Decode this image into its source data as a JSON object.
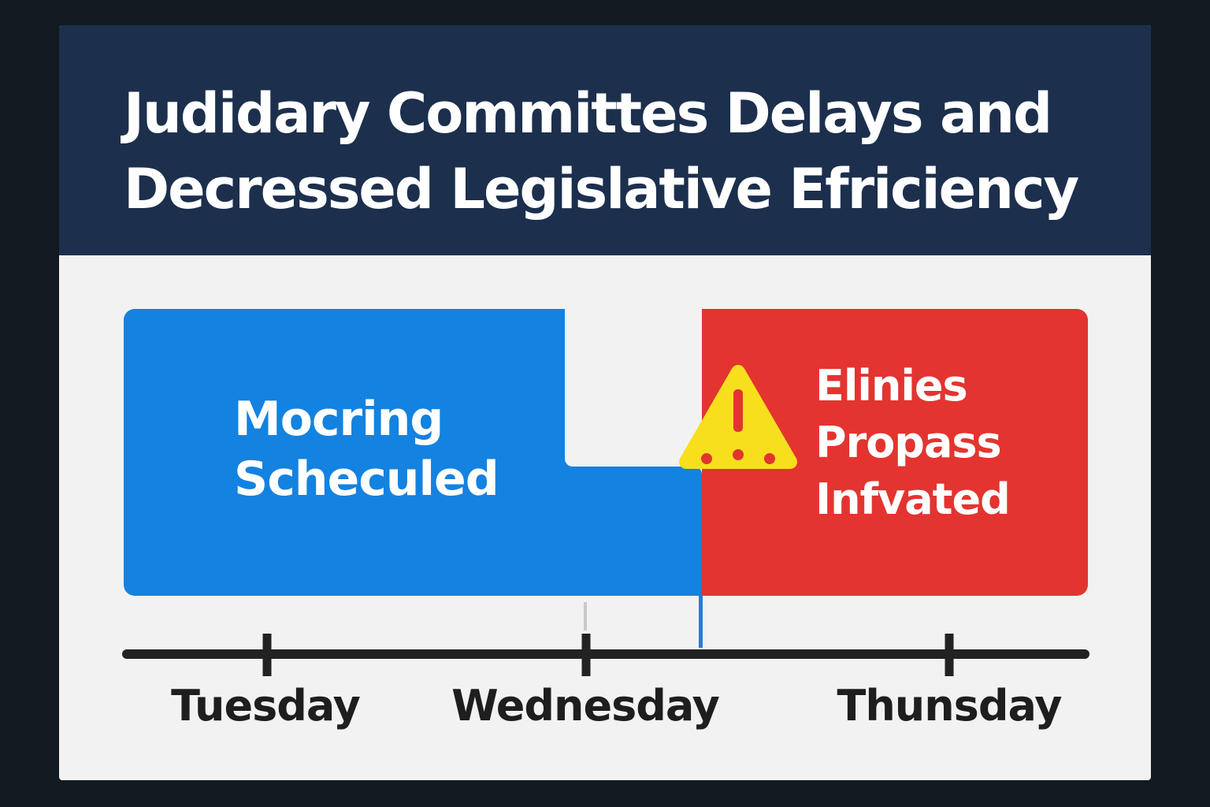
{
  "header": {
    "title_line1": "Judidary Committes Delays and",
    "title_line2": "Decressed Legislative Efriciency"
  },
  "timeline": {
    "blue_block": {
      "line1": "Mocring",
      "line2": "Scheculed",
      "color": "#1482e0"
    },
    "red_block": {
      "line1": "Elinies",
      "line2": "Propass",
      "line3": "Infvated",
      "color": "#e33430"
    },
    "warning_icon": "warning-triangle-icon",
    "days": [
      "Tuesday",
      "Wednesday",
      "Thunsday"
    ]
  },
  "colors": {
    "header_bg": "#1c2f4d",
    "card_bg": "#f2f2f2",
    "axis": "#222222",
    "warning": "#f7df1e"
  }
}
